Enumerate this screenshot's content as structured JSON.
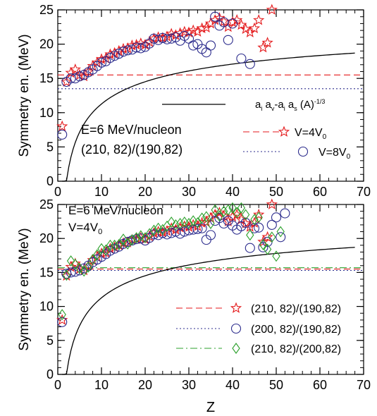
{
  "figure": {
    "xlabel": "Z"
  },
  "chart_data": [
    {
      "type": "scatter",
      "ylabel": "Symmetry en. (MeV)",
      "xlim": [
        0,
        70
      ],
      "ylim": [
        0,
        25
      ],
      "xticks": [
        0,
        10,
        20,
        30,
        40,
        50,
        60,
        70
      ],
      "yticks": [
        0,
        5,
        10,
        15,
        20,
        25
      ],
      "x_minor_step": 2,
      "y_minor_step": 1,
      "annotation_lines": [
        "E=6 MeV/nucleon",
        "(210, 82)/(190,82)"
      ],
      "curve": {
        "label_html": "a<tspan font-size='9' dy='4'>i</tspan><tspan dy='-4'> a</tspan><tspan font-size='9' dy='4'>v</tspan><tspan dy='-4'>-a</tspan><tspan font-size='9' dy='4'>i</tspan><tspan dy='-4'> a</tspan><tspan font-size='9' dy='4'>s</tspan><tspan dy='-4'> (A)</tspan><tspan font-size='9' dy='-6'>-1/3</tspan>",
        "color": "#000000",
        "params": {
          "a": 27,
          "b": 46
        },
        "x_range": [
          1,
          68
        ]
      },
      "legend": {
        "position": "lower-right"
      },
      "series": [
        {
          "name_html": "V=4V<tspan font-size='10' dy='4'>0</tspan>",
          "marker": "star",
          "color": "#e41a1c",
          "line_style": "dashed",
          "ref_y": 15.5,
          "x": [
            1,
            2,
            3,
            4,
            5,
            6,
            7,
            8,
            9,
            10,
            11,
            12,
            13,
            14,
            15,
            16,
            17,
            18,
            19,
            20,
            21,
            22,
            23,
            24,
            25,
            26,
            27,
            28,
            29,
            30,
            31,
            32,
            33,
            34,
            35,
            36,
            37,
            38,
            39,
            40,
            41,
            42,
            43,
            44,
            45,
            46,
            47,
            48,
            49
          ],
          "y": [
            8,
            14.5,
            15.8,
            16.3,
            15.5,
            15.3,
            16,
            16.8,
            17.3,
            17.8,
            17.9,
            18.5,
            18.7,
            19,
            19.3,
            19.4,
            19.8,
            19.9,
            20.1,
            19.9,
            20.3,
            20.8,
            21,
            20.9,
            21.1,
            21.5,
            21.3,
            21.6,
            21.8,
            21.7,
            22,
            21.8,
            22.3,
            22.4,
            23,
            23.5,
            23.8,
            23.3,
            22.5,
            23.2,
            23.5,
            22.8,
            22.2,
            21.7,
            22.3,
            23.5,
            19.5,
            20.2,
            25
          ]
        },
        {
          "name_html": "V=8V<tspan font-size='10' dy='4'>0</tspan>",
          "marker": "circle",
          "color": "#2b2b8c",
          "line_style": "dotted",
          "ref_y": 13.5,
          "x": [
            1,
            2,
            3,
            4,
            5,
            6,
            7,
            8,
            9,
            10,
            11,
            12,
            13,
            14,
            15,
            16,
            17,
            18,
            19,
            20,
            21,
            22,
            23,
            24,
            25,
            26,
            27,
            28,
            29,
            30,
            31,
            32,
            33,
            34,
            35,
            36,
            37,
            38,
            39,
            40,
            42,
            44
          ],
          "y": [
            6.8,
            14.5,
            15,
            15,
            15.3,
            15.5,
            15.9,
            16.3,
            16.8,
            17.3,
            17.5,
            18,
            18.3,
            18.6,
            18.9,
            19.1,
            19.2,
            19.5,
            19.4,
            19.6,
            20.1,
            20.8,
            20.6,
            20.9,
            20.7,
            20.8,
            21,
            20.5,
            21.2,
            20.8,
            19.8,
            20,
            19.3,
            18.8,
            19.8,
            24,
            22.7,
            23.2,
            20.6,
            23,
            17.9,
            17.1
          ]
        }
      ]
    },
    {
      "type": "scatter",
      "ylabel": "Symmetry en. (MeV)",
      "xlim": [
        0,
        70
      ],
      "ylim": [
        0,
        25
      ],
      "xticks": [
        0,
        10,
        20,
        30,
        40,
        50,
        60,
        70
      ],
      "yticks": [
        0,
        5,
        10,
        15,
        20,
        25
      ],
      "x_minor_step": 2,
      "y_minor_step": 1,
      "annotation_lines": [
        "E=6 MeV/nucleon",
        "V=4V|0"
      ],
      "curve": {
        "color": "#000000",
        "params": {
          "a": 27,
          "b": 46
        },
        "x_range": [
          1,
          68
        ]
      },
      "legend": {
        "position": "lower-right"
      },
      "series": [
        {
          "name": "(210, 82)/(190,82)",
          "marker": "star",
          "color": "#e41a1c",
          "line_style": "dashed",
          "ref_y": 15.5,
          "x": [
            1,
            2,
            3,
            4,
            5,
            6,
            7,
            8,
            9,
            10,
            11,
            12,
            13,
            14,
            15,
            16,
            17,
            18,
            19,
            20,
            21,
            22,
            23,
            24,
            25,
            26,
            27,
            28,
            29,
            30,
            31,
            32,
            33,
            34,
            35,
            36,
            37,
            38,
            39,
            40,
            41,
            42,
            43,
            44,
            45,
            46,
            47,
            48,
            49
          ],
          "y": [
            8,
            14.5,
            15.8,
            16.3,
            15.5,
            15.3,
            16,
            16.8,
            17.3,
            17.8,
            17.9,
            18.5,
            18.7,
            19,
            19.3,
            19.4,
            19.8,
            19.9,
            20.1,
            19.9,
            20.3,
            20.8,
            21,
            20.9,
            21.1,
            21.5,
            21.3,
            21.6,
            21.8,
            21.7,
            22,
            21.8,
            22.3,
            22.4,
            23,
            23.5,
            23.8,
            23.3,
            22.5,
            23.2,
            23.5,
            22.8,
            22.2,
            21.7,
            22.3,
            23.5,
            19.5,
            20.2,
            25
          ]
        },
        {
          "name": "(200, 82)/(190,82)",
          "marker": "circle",
          "color": "#2b2b8c",
          "line_style": "dotted",
          "ref_y": 15.3,
          "x": [
            1,
            2,
            3,
            4,
            5,
            6,
            7,
            8,
            9,
            10,
            11,
            12,
            13,
            14,
            15,
            16,
            17,
            18,
            19,
            20,
            21,
            22,
            23,
            24,
            25,
            26,
            27,
            28,
            29,
            30,
            31,
            32,
            33,
            34,
            35,
            36,
            37,
            38,
            39,
            40,
            41,
            42,
            43,
            44,
            45,
            46,
            47,
            48,
            49,
            50,
            51,
            52
          ],
          "y": [
            7.7,
            14.8,
            15,
            15.1,
            15.3,
            15.6,
            16,
            16.5,
            16.9,
            17.3,
            17.7,
            18.2,
            18.5,
            18.8,
            19.2,
            19.5,
            19.7,
            19.9,
            20,
            19.7,
            20.1,
            20.6,
            20.5,
            20.8,
            20.6,
            20.8,
            21,
            20.7,
            21,
            21.2,
            21.3,
            21.4,
            21.5,
            19.8,
            20.5,
            22.6,
            23,
            22.2,
            22.6,
            21.9,
            21.3,
            21.8,
            22.3,
            18.6,
            21.5,
            21.6,
            18.7,
            19.5,
            22,
            23.1,
            20.2,
            23.7
          ]
        },
        {
          "name": "(210, 82)/(200,82)",
          "marker": "diamond",
          "color": "#2ca02c",
          "line_style": "dashdot",
          "ref_y": 15.7,
          "x": [
            1,
            2,
            3,
            4,
            5,
            6,
            7,
            8,
            9,
            10,
            11,
            12,
            13,
            14,
            15,
            16,
            17,
            18,
            19,
            20,
            21,
            22,
            23,
            24,
            25,
            26,
            27,
            28,
            29,
            30,
            31,
            32,
            33,
            34,
            35,
            36,
            37,
            38,
            39,
            40,
            41,
            42,
            43,
            44,
            45,
            46,
            47,
            48,
            49,
            50,
            51
          ],
          "y": [
            8.8,
            14.6,
            16.7,
            16.2,
            15.6,
            15.2,
            15.8,
            16.9,
            17.6,
            18.5,
            18.3,
            19,
            19,
            19.1,
            19.9,
            19.2,
            19.8,
            20.1,
            20.4,
            20.1,
            20.7,
            21.2,
            21.5,
            21.3,
            21.8,
            22.4,
            22,
            22.2,
            22.4,
            22.2,
            22.6,
            22.3,
            23,
            23.2,
            22.2,
            24.2,
            23.3,
            24,
            24.2,
            24.5,
            23.8,
            24.5,
            23.5,
            20.5,
            22.8,
            23.1,
            19.1,
            18.4,
            20.2,
            17.4,
            21
          ]
        }
      ]
    }
  ]
}
